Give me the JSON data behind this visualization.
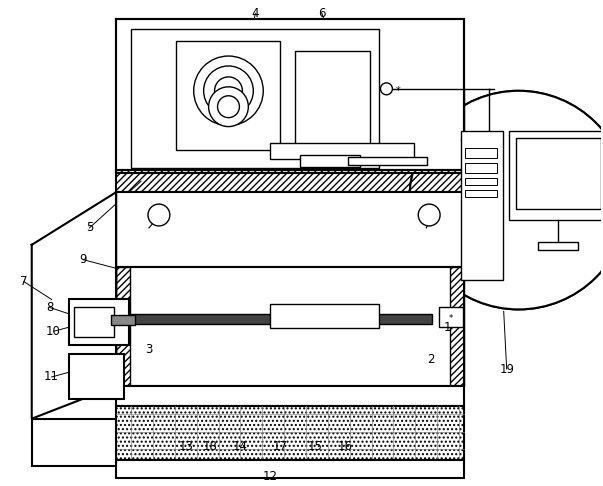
{
  "bg_color": "#ffffff",
  "line_color": "#000000",
  "fig_width": 6.03,
  "fig_height": 4.86,
  "label_fontsize": 8.5
}
